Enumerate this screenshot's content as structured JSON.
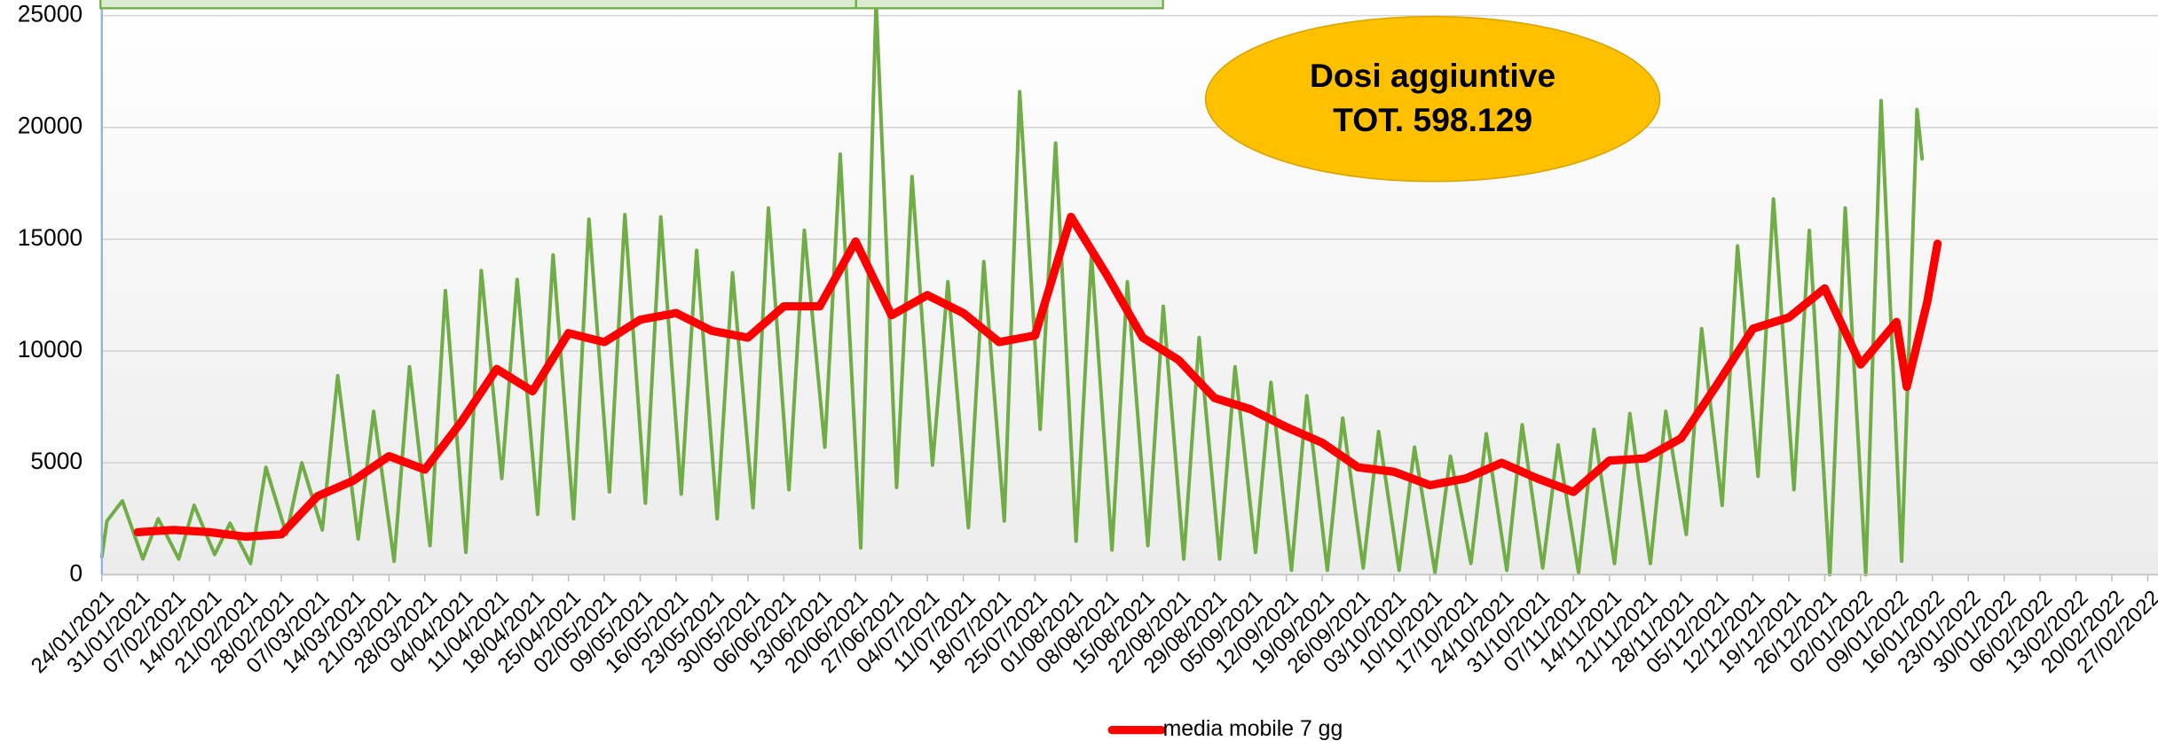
{
  "chart_data": {
    "type": "line",
    "annotation": [
      "Dosi aggiuntive",
      "TOT. 598.129"
    ],
    "ylim": [
      0,
      25700
    ],
    "yticks": [
      0,
      5000,
      10000,
      15000,
      20000,
      25000
    ],
    "xlim": [
      "24/01/2021",
      "01/03/2022"
    ],
    "xticks": [
      "24/01/2021",
      "31/01/2021",
      "07/02/2021",
      "14/02/2021",
      "21/02/2021",
      "28/02/2021",
      "07/03/2021",
      "14/03/2021",
      "21/03/2021",
      "28/03/2021",
      "04/04/2021",
      "11/04/2021",
      "18/04/2021",
      "25/04/2021",
      "02/05/2021",
      "09/05/2021",
      "16/05/2021",
      "23/05/2021",
      "30/05/2021",
      "06/06/2021",
      "13/06/2021",
      "20/06/2021",
      "27/06/2021",
      "04/07/2021",
      "11/07/2021",
      "18/07/2021",
      "25/07/2021",
      "01/08/2021",
      "08/08/2021",
      "15/08/2021",
      "22/08/2021",
      "29/08/2021",
      "05/09/2021",
      "12/09/2021",
      "19/09/2021",
      "26/09/2021",
      "03/10/2021",
      "10/10/2021",
      "17/10/2021",
      "24/10/2021",
      "31/10/2021",
      "07/11/2021",
      "14/11/2021",
      "21/11/2021",
      "28/11/2021",
      "05/12/2021",
      "12/12/2021",
      "19/12/2021",
      "26/12/2021",
      "02/01/2022",
      "09/01/2022",
      "16/01/2022",
      "23/01/2022",
      "30/01/2022",
      "06/02/2022",
      "13/02/2022",
      "20/02/2022",
      "27/02/2022"
    ],
    "grid": true,
    "legend": "bottom",
    "series": [
      {
        "color": "#70ad47",
        "x": [
          "24/01/2021",
          "25/01/2021",
          "28/01/2021",
          "01/02/2021",
          "04/02/2021",
          "08/02/2021",
          "11/02/2021",
          "15/02/2021",
          "18/02/2021",
          "22/02/2021",
          "25/02/2021",
          "01/03/2021",
          "04/03/2021",
          "08/03/2021",
          "11/03/2021",
          "15/03/2021",
          "18/03/2021",
          "22/03/2021",
          "25/03/2021",
          "29/03/2021",
          "01/04/2021",
          "05/04/2021",
          "08/04/2021",
          "12/04/2021",
          "15/04/2021",
          "19/04/2021",
          "22/04/2021",
          "26/04/2021",
          "29/04/2021",
          "03/05/2021",
          "06/05/2021",
          "10/05/2021",
          "13/05/2021",
          "17/05/2021",
          "20/05/2021",
          "24/05/2021",
          "27/05/2021",
          "31/05/2021",
          "03/06/2021",
          "07/06/2021",
          "10/06/2021",
          "14/06/2021",
          "17/06/2021",
          "21/06/2021",
          "24/06/2021",
          "28/06/2021",
          "01/07/2021",
          "05/07/2021",
          "08/07/2021",
          "12/07/2021",
          "15/07/2021",
          "19/07/2021",
          "22/07/2021",
          "26/07/2021",
          "29/07/2021",
          "02/08/2021",
          "05/08/2021",
          "09/08/2021",
          "12/08/2021",
          "16/08/2021",
          "19/08/2021",
          "23/08/2021",
          "26/08/2021",
          "30/08/2021",
          "02/09/2021",
          "06/09/2021",
          "09/09/2021",
          "13/09/2021",
          "16/09/2021",
          "20/09/2021",
          "23/09/2021",
          "27/09/2021",
          "30/09/2021",
          "04/10/2021",
          "07/10/2021",
          "11/10/2021",
          "14/10/2021",
          "18/10/2021",
          "21/10/2021",
          "25/10/2021",
          "28/10/2021",
          "01/11/2021",
          "04/11/2021",
          "08/11/2021",
          "11/11/2021",
          "15/11/2021",
          "18/11/2021",
          "22/11/2021",
          "25/11/2021",
          "29/11/2021",
          "02/12/2021",
          "06/12/2021",
          "09/12/2021",
          "13/12/2021",
          "16/12/2021",
          "20/12/2021",
          "23/12/2021",
          "27/12/2021",
          "30/12/2021",
          "03/01/2022",
          "06/01/2022",
          "10/01/2022",
          "13/01/2022",
          "14/01/2022"
        ],
        "values": [
          800,
          2400,
          3300,
          700,
          2500,
          700,
          3100,
          900,
          2300,
          500,
          4800,
          1800,
          5000,
          2000,
          8900,
          1600,
          7300,
          600,
          9300,
          1300,
          12700,
          1000,
          13600,
          4300,
          13200,
          2700,
          14300,
          2500,
          15900,
          3700,
          16100,
          3200,
          16000,
          3600,
          14500,
          2500,
          13500,
          3000,
          16400,
          3800,
          15400,
          5700,
          18800,
          1200,
          25600,
          3900,
          17800,
          4900,
          13100,
          2100,
          14000,
          2400,
          21600,
          6500,
          19300,
          1500,
          14300,
          1100,
          13100,
          1300,
          12000,
          700,
          10600,
          700,
          9300,
          1000,
          8600,
          200,
          8000,
          200,
          7000,
          300,
          6400,
          200,
          5700,
          100,
          5300,
          500,
          6300,
          200,
          6700,
          300,
          5800,
          100,
          6500,
          500,
          7200,
          500,
          7300,
          1800,
          11000,
          3100,
          14700,
          4400,
          16800,
          3800,
          15400,
          0,
          16400,
          0,
          21200,
          600,
          20800,
          18600
        ]
      },
      {
        "name": "media mobile 7 gg",
        "color": "#ff0000",
        "x": [
          "31/01/2021",
          "07/02/2021",
          "14/02/2021",
          "21/02/2021",
          "28/02/2021",
          "07/03/2021",
          "14/03/2021",
          "21/03/2021",
          "28/03/2021",
          "04/04/2021",
          "11/04/2021",
          "18/04/2021",
          "25/04/2021",
          "02/05/2021",
          "09/05/2021",
          "16/05/2021",
          "23/05/2021",
          "30/05/2021",
          "06/06/2021",
          "13/06/2021",
          "20/06/2021",
          "27/06/2021",
          "04/07/2021",
          "11/07/2021",
          "18/07/2021",
          "25/07/2021",
          "01/08/2021",
          "08/08/2021",
          "15/08/2021",
          "22/08/2021",
          "29/08/2021",
          "05/09/2021",
          "12/09/2021",
          "19/09/2021",
          "26/09/2021",
          "03/10/2021",
          "10/10/2021",
          "17/10/2021",
          "24/10/2021",
          "31/10/2021",
          "07/11/2021",
          "14/11/2021",
          "21/11/2021",
          "28/11/2021",
          "05/12/2021",
          "12/12/2021",
          "19/12/2021",
          "26/12/2021",
          "02/01/2022",
          "09/01/2022",
          "11/01/2022",
          "15/01/2022",
          "17/01/2022"
        ],
        "values": [
          1900,
          2000,
          1900,
          1700,
          1800,
          3500,
          4200,
          5300,
          4700,
          6800,
          9200,
          8200,
          10800,
          10400,
          11400,
          11700,
          10900,
          10600,
          12000,
          12000,
          14900,
          11600,
          12500,
          11700,
          10400,
          10700,
          16000,
          13400,
          10600,
          9600,
          7900,
          7400,
          6600,
          5900,
          4800,
          4600,
          4000,
          4300,
          5000,
          4300,
          3700,
          5100,
          5200,
          6100,
          8500,
          11000,
          11500,
          12800,
          9400,
          11300,
          8400,
          12200,
          14800
        ]
      }
    ]
  }
}
